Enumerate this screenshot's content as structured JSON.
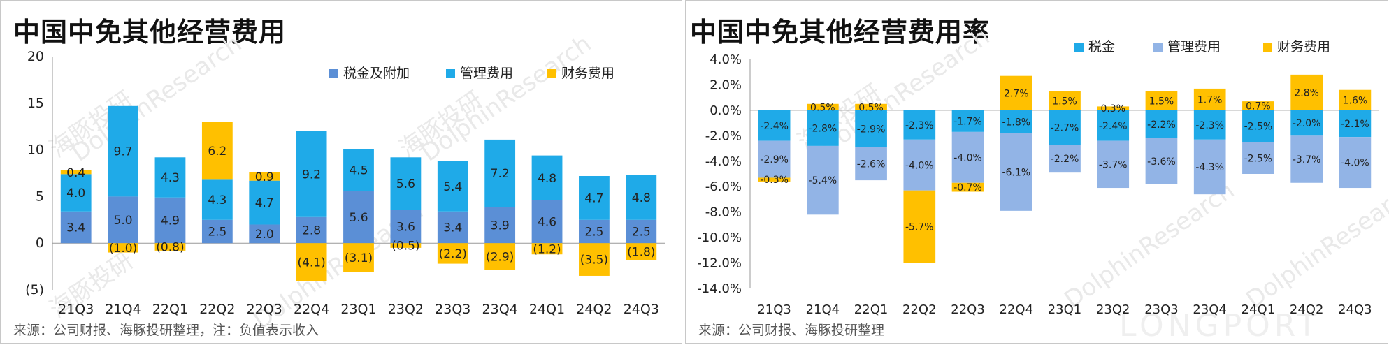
{
  "chart_data": [
    {
      "type": "bar",
      "stacked": true,
      "title": "中国中免其他经营费用",
      "source": "来源：公司财报、海豚投研整理，注：负值表示收入",
      "categories": [
        "21Q3",
        "21Q4",
        "22Q1",
        "22Q2",
        "22Q3",
        "22Q4",
        "23Q1",
        "23Q2",
        "23Q3",
        "23Q4",
        "24Q1",
        "24Q2",
        "24Q3"
      ],
      "series": [
        {
          "name": "税金及附加",
          "color": "#5b8fd6",
          "values": [
            3.4,
            5.0,
            4.9,
            2.5,
            2.0,
            2.8,
            5.6,
            3.6,
            3.4,
            3.9,
            4.6,
            2.5,
            2.5
          ],
          "labels": [
            "3.4",
            "5.0",
            "4.9",
            "2.5",
            "2.0",
            "2.8",
            "5.6",
            "3.6",
            "3.4",
            "3.9",
            "4.6",
            "2.5",
            "2.5"
          ]
        },
        {
          "name": "管理费用",
          "color": "#1faae8",
          "values": [
            4.0,
            9.7,
            4.3,
            4.3,
            4.7,
            9.2,
            4.5,
            5.6,
            5.4,
            7.2,
            4.8,
            4.7,
            4.8
          ],
          "labels": [
            "4.0",
            "9.7",
            "4.3",
            "4.3",
            "4.7",
            "9.2",
            "4.5",
            "5.6",
            "5.4",
            "7.2",
            "4.8",
            "4.7",
            "4.8"
          ]
        },
        {
          "name": "财务费用",
          "color": "#ffc000",
          "values": [
            0.4,
            -1.0,
            -0.8,
            6.2,
            0.9,
            -4.1,
            -3.1,
            -0.5,
            -2.2,
            -2.9,
            -1.2,
            -3.5,
            -1.8
          ],
          "labels": [
            "0.4",
            "(1.0)",
            "(0.8)",
            "6.2",
            "0.9",
            "(4.1)",
            "(3.1)",
            "(0.5)",
            "(2.2)",
            "(2.9)",
            "(1.2)",
            "(3.5)",
            "(1.8)"
          ]
        }
      ],
      "yticks": [
        "20",
        "15",
        "10",
        "5",
        "0",
        "(5)"
      ],
      "ylim": [
        -5,
        20
      ],
      "legend": "top-right",
      "grid": false
    },
    {
      "type": "bar",
      "stacked": true,
      "title": "中国中免其他经营费用率",
      "source": "来源：公司财报、海豚投研整理",
      "categories": [
        "21Q3",
        "21Q4",
        "22Q1",
        "22Q2",
        "22Q3",
        "22Q4",
        "23Q1",
        "23Q2",
        "23Q3",
        "23Q4",
        "24Q1",
        "24Q2",
        "24Q3"
      ],
      "series": [
        {
          "name": "税金",
          "color": "#1faae8",
          "values": [
            -2.4,
            -2.8,
            -2.9,
            -2.3,
            -1.7,
            -1.8,
            -2.7,
            -2.4,
            -2.2,
            -2.3,
            -2.5,
            -2.0,
            -2.1
          ],
          "labels": [
            "-2.4%",
            "-2.8%",
            "-2.9%",
            "-2.3%",
            "-1.7%",
            "-1.8%",
            "-2.7%",
            "-2.4%",
            "-2.2%",
            "-2.3%",
            "-2.5%",
            "-2.0%",
            "-2.1%"
          ]
        },
        {
          "name": "管理费用",
          "color": "#92b4e6",
          "values": [
            -2.9,
            -5.4,
            -2.6,
            -4.0,
            -4.0,
            -6.1,
            -2.2,
            -3.7,
            -3.6,
            -4.3,
            -2.5,
            -3.7,
            -4.0
          ],
          "labels": [
            "-2.9%",
            "-5.4%",
            "-2.6%",
            "-4.0%",
            "-4.0%",
            "-6.1%",
            "-2.2%",
            "-3.7%",
            "-3.6%",
            "-4.3%",
            "-2.5%",
            "-3.7%",
            "-4.0%"
          ]
        },
        {
          "name": "财务费用",
          "color": "#ffc000",
          "values": [
            -0.3,
            0.5,
            0.5,
            -5.7,
            -0.7,
            2.7,
            1.5,
            0.3,
            1.5,
            1.7,
            0.7,
            2.8,
            1.6
          ],
          "labels": [
            "-0.3%",
            "0.5%",
            "0.5%",
            "-5.7%",
            "-0.7%",
            "2.7%",
            "1.5%",
            "0.3%",
            "1.5%",
            "1.7%",
            "0.7%",
            "2.8%",
            "1.6%"
          ]
        }
      ],
      "yticks": [
        "4.0%",
        "2.0%",
        "0.0%",
        "-2.0%",
        "-4.0%",
        "-6.0%",
        "-8.0%",
        "-10.0%",
        "-12.0%",
        "-14.0%"
      ],
      "ylim": [
        -14,
        4
      ],
      "legend": "top-right",
      "grid": false
    }
  ],
  "watermarks": [
    "海豚投研",
    "DolphinResearch",
    "LONGPORT"
  ]
}
